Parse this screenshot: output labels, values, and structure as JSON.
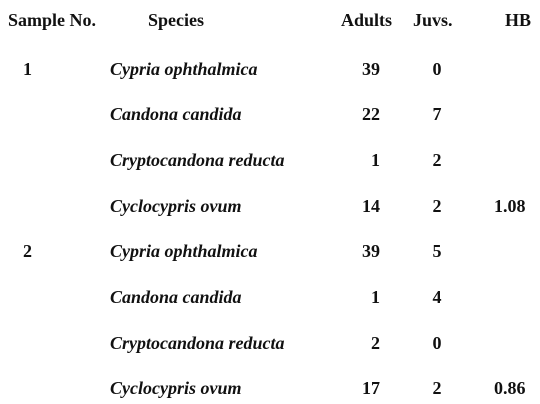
{
  "headers": {
    "sample": "Sample No.",
    "species": "Species",
    "adults": "Adults",
    "juvs": "Juvs.",
    "hb": "HB"
  },
  "rows": [
    {
      "sample": "1",
      "species": "Cypria ophthalmica",
      "adults": "39",
      "juvs": "0",
      "hb": ""
    },
    {
      "sample": "",
      "species": "Candona candida",
      "adults": "22",
      "juvs": "7",
      "hb": ""
    },
    {
      "sample": "",
      "species": "Cryptocandona reducta",
      "adults": "1",
      "juvs": "2",
      "hb": ""
    },
    {
      "sample": "",
      "species": "Cyclocypris ovum",
      "adults": "14",
      "juvs": "2",
      "hb": "1.08"
    },
    {
      "sample": "2",
      "species": "Cypria ophthalmica",
      "adults": "39",
      "juvs": "5",
      "hb": ""
    },
    {
      "sample": "",
      "species": "Candona candida",
      "adults": "1",
      "juvs": "4",
      "hb": ""
    },
    {
      "sample": "",
      "species": "Cryptocandona reducta",
      "adults": "2",
      "juvs": "0",
      "hb": ""
    },
    {
      "sample": "",
      "species": "Cyclocypris ovum",
      "adults": "17",
      "juvs": "2",
      "hb": "0.86"
    }
  ]
}
